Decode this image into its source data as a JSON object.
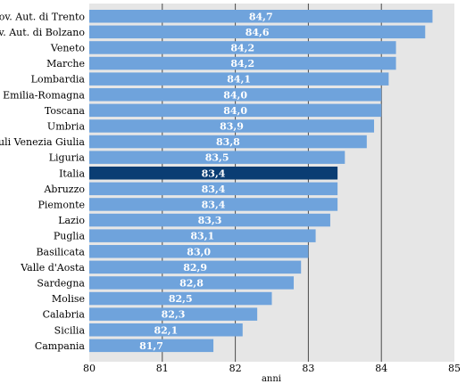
{
  "chart_data": {
    "type": "bar",
    "orientation": "horizontal",
    "categories": [
      "Prov. Aut. di Trento",
      "Prov. Aut. di Bolzano",
      "Veneto",
      "Marche",
      "Lombardia",
      "Emilia-Romagna",
      "Toscana",
      "Umbria",
      "Friuli Venezia Giulia",
      "Liguria",
      "Italia",
      "Abruzzo",
      "Piemonte",
      "Lazio",
      "Puglia",
      "Basilicata",
      "Valle d'Aosta",
      "Sardegna",
      "Molise",
      "Calabria",
      "Sicilia",
      "Campania"
    ],
    "values": [
      84.7,
      84.6,
      84.2,
      84.2,
      84.1,
      84.0,
      84.0,
      83.9,
      83.8,
      83.5,
      83.4,
      83.4,
      83.4,
      83.3,
      83.1,
      83.0,
      82.9,
      82.8,
      82.5,
      82.3,
      82.1,
      81.7
    ],
    "value_labels": [
      "84,7",
      "84,6",
      "84,2",
      "84,2",
      "84,1",
      "84,0",
      "84,0",
      "83,9",
      "83,8",
      "83,5",
      "83,4",
      "83,4",
      "83,4",
      "83,3",
      "83,1",
      "83,0",
      "82,9",
      "82,8",
      "82,5",
      "82,3",
      "82,1",
      "81,7"
    ],
    "highlight": "Italia",
    "xlim": [
      80,
      85
    ],
    "xticks": [
      "80",
      "81",
      "82",
      "83",
      "84",
      "85"
    ],
    "xlabel": "anni",
    "ylabel": "",
    "title": "",
    "grid": true,
    "colors": {
      "bar": "#6fa3dc",
      "bar_highlight": "#0a3d73",
      "plot_background": "#e6e6e6",
      "gridline": "#4a4a4a",
      "value_text": "#ffffff"
    }
  }
}
